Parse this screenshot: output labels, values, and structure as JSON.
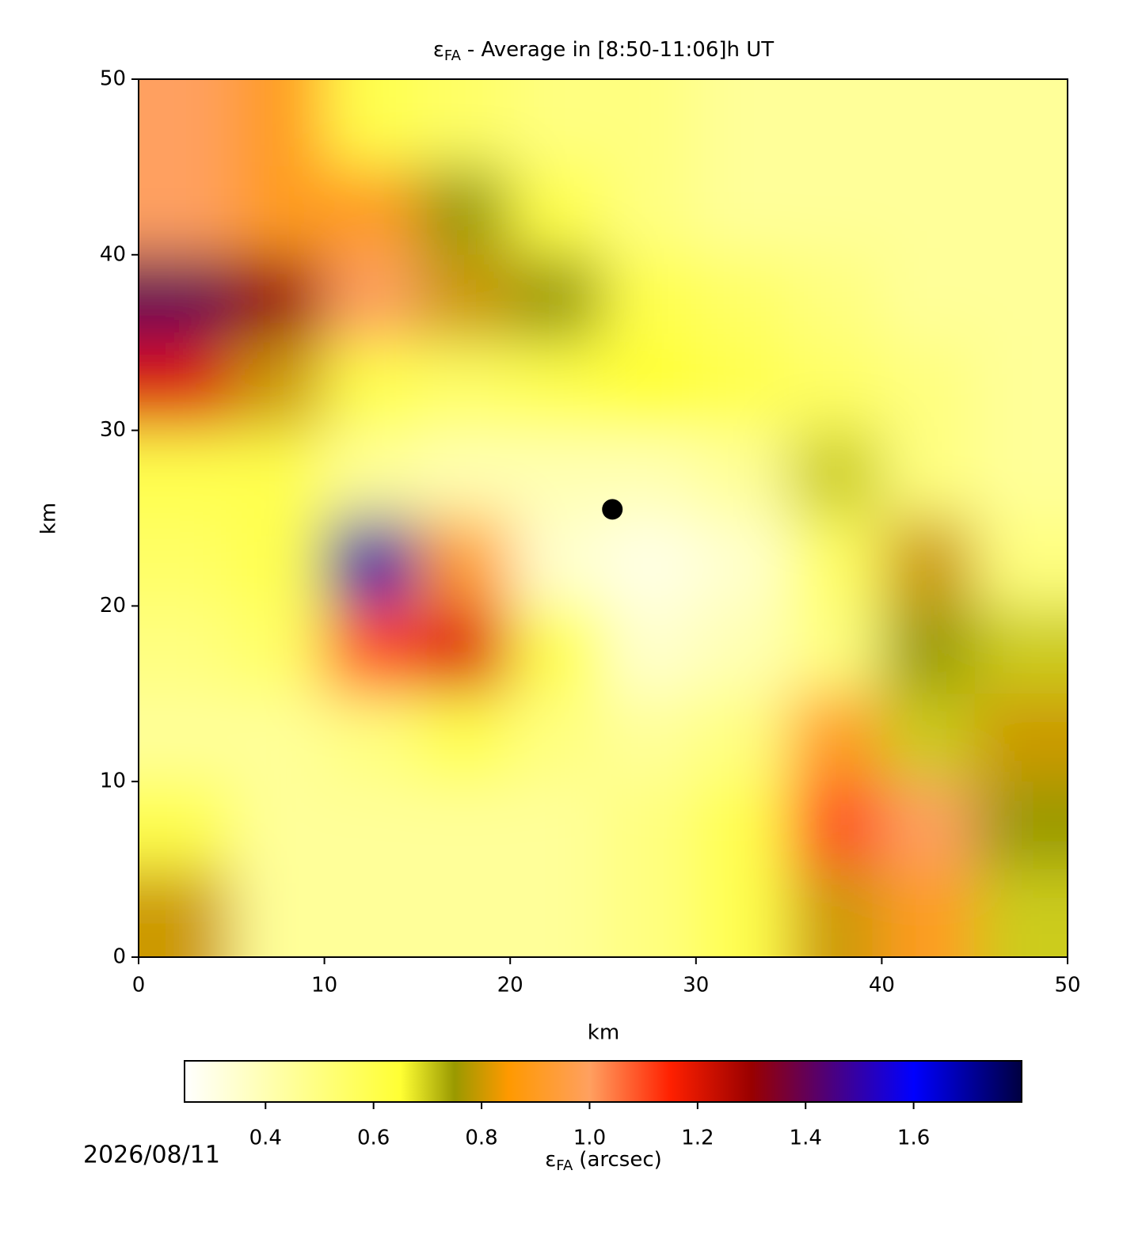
{
  "chart_data": {
    "type": "heatmap",
    "title": {
      "symbol": "ε",
      "subscript": "FA",
      "text": "- Average in [8:50-11:06]h UT"
    },
    "xlabel": "km",
    "ylabel": "km",
    "xlim": [
      0,
      50
    ],
    "ylim": [
      0,
      50
    ],
    "xticks": [
      0,
      10,
      20,
      30,
      40,
      50
    ],
    "yticks": [
      0,
      10,
      20,
      30,
      40,
      50
    ],
    "x": [
      2.5,
      7.5,
      12.5,
      17.5,
      22.5,
      27.5,
      32.5,
      37.5,
      42.5,
      47.5
    ],
    "y": [
      47.5,
      42.5,
      37.5,
      32.5,
      27.5,
      22.5,
      17.5,
      12.5,
      7.5,
      2.5
    ],
    "z": [
      [
        1.0,
        0.9,
        0.6,
        0.55,
        0.5,
        0.5,
        0.45,
        0.45,
        0.45,
        0.45
      ],
      [
        1.0,
        0.9,
        0.9,
        0.75,
        0.6,
        0.5,
        0.45,
        0.45,
        0.45,
        0.45
      ],
      [
        1.4,
        1.3,
        1.0,
        0.8,
        0.75,
        0.6,
        0.55,
        0.5,
        0.45,
        0.45
      ],
      [
        1.2,
        0.8,
        0.6,
        0.55,
        0.6,
        0.65,
        0.6,
        0.55,
        0.5,
        0.45
      ],
      [
        0.6,
        0.6,
        0.45,
        0.4,
        0.4,
        0.4,
        0.45,
        0.7,
        0.5,
        0.45
      ],
      [
        0.55,
        0.6,
        1.5,
        0.9,
        0.35,
        0.3,
        0.35,
        0.55,
        0.8,
        0.5
      ],
      [
        0.5,
        0.55,
        1.1,
        1.2,
        0.6,
        0.35,
        0.4,
        0.5,
        0.75,
        0.7
      ],
      [
        0.45,
        0.45,
        0.5,
        0.6,
        0.5,
        0.45,
        0.5,
        0.9,
        0.7,
        0.8
      ],
      [
        0.6,
        0.45,
        0.45,
        0.45,
        0.45,
        0.5,
        0.6,
        1.1,
        1.0,
        0.75
      ],
      [
        0.8,
        0.45,
        0.45,
        0.45,
        0.45,
        0.5,
        0.6,
        0.8,
        0.9,
        0.7
      ]
    ],
    "marker": {
      "x": 25.5,
      "y": 25.5,
      "color": "#000000"
    },
    "colormap": [
      {
        "value": 0.25,
        "color": "#ffffff"
      },
      {
        "value": 0.45,
        "color": "#ffff99"
      },
      {
        "value": 0.65,
        "color": "#ffff33"
      },
      {
        "value": 0.75,
        "color": "#999900"
      },
      {
        "value": 0.85,
        "color": "#ff9900"
      },
      {
        "value": 1.0,
        "color": "#ffa060"
      },
      {
        "value": 1.15,
        "color": "#ff2000"
      },
      {
        "value": 1.3,
        "color": "#990000"
      },
      {
        "value": 1.45,
        "color": "#4a0080"
      },
      {
        "value": 1.6,
        "color": "#0000ff"
      },
      {
        "value": 1.8,
        "color": "#000040"
      }
    ],
    "colorbar": {
      "label_symbol": "ε",
      "label_subscript": "FA",
      "label_text": "(arcsec)",
      "clim": [
        0.25,
        1.8
      ],
      "ticks": [
        {
          "value": 0.4,
          "label": "0.4"
        },
        {
          "value": 0.6,
          "label": "0.6"
        },
        {
          "value": 0.8,
          "label": "0.8"
        },
        {
          "value": 1.0,
          "label": "1.0"
        },
        {
          "value": 1.2,
          "label": "1.2"
        },
        {
          "value": 1.4,
          "label": "1.4"
        },
        {
          "value": 1.6,
          "label": "1.6"
        }
      ]
    },
    "date": "2026/08/11"
  }
}
